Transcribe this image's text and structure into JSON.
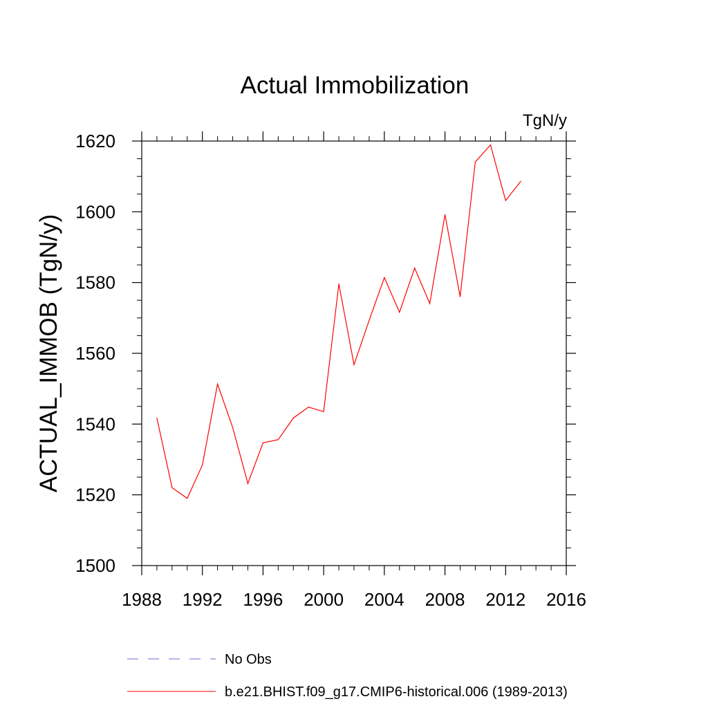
{
  "chart_data": {
    "type": "line",
    "title": "Actual Immobilization",
    "units_label": "TgN/y",
    "ylabel": "ACTUAL_IMMOB  (TgN/y)",
    "xlabel": "",
    "xlim": [
      1988,
      2016
    ],
    "ylim": [
      1500,
      1620
    ],
    "x_ticks": [
      1988,
      1992,
      1996,
      2000,
      2004,
      2008,
      2012,
      2016
    ],
    "y_ticks": [
      1500,
      1520,
      1540,
      1560,
      1580,
      1600,
      1620
    ],
    "grid": false,
    "legend_position": "bottom",
    "x": [
      1989,
      1990,
      1991,
      1992,
      1993,
      1994,
      1995,
      1996,
      1997,
      1998,
      1999,
      2000,
      2001,
      2002,
      2003,
      2004,
      2005,
      2006,
      2007,
      2008,
      2009,
      2010,
      2011,
      2012,
      2013
    ],
    "series": [
      {
        "name": "b.e21.BHIST.f09_g17.CMIP6-historical.006 (1989-2013)",
        "color": "#ff0000",
        "style": "solid",
        "values": [
          1541.7,
          1522.0,
          1519.0,
          1528.4,
          1551.3,
          1539.0,
          1523.2,
          1534.7,
          1535.6,
          1541.7,
          1544.8,
          1543.5,
          1579.6,
          1556.8,
          1569.3,
          1581.4,
          1571.6,
          1584.1,
          1574.1,
          1599.2,
          1576.0,
          1614.1,
          1618.9,
          1603.2,
          1608.6
        ]
      }
    ],
    "legend": [
      {
        "label": "No Obs",
        "color": "#6a6ad0",
        "style": "dashed"
      },
      {
        "label": "b.e21.BHIST.f09_g17.CMIP6-historical.006 (1989-2013)",
        "color": "#ff0000",
        "style": "solid"
      }
    ]
  }
}
